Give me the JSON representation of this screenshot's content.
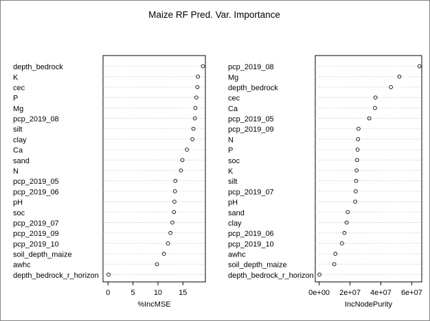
{
  "chart_data": {
    "type": "scatter",
    "title": "Maize RF Pred. Var. Importance",
    "grid": "dotted horizontal guide lines",
    "marker": "open circle",
    "panels": [
      {
        "xlabel": "%IncMSE",
        "xlim": [
          -1,
          19.5
        ],
        "ticks": [
          0,
          5,
          10,
          15
        ],
        "tick_labels": [
          "0",
          "5",
          "10",
          "15"
        ],
        "variables": [
          "depth_bedrock",
          "K",
          "cec",
          "P",
          "Mg",
          "pcp_2019_08",
          "silt",
          "clay",
          "Ca",
          "sand",
          "N",
          "pcp_2019_05",
          "pcp_2019_06",
          "pH",
          "soc",
          "pcp_2019_07",
          "pcp_2019_09",
          "pcp_2019_10",
          "soil_depth_maize",
          "awhc",
          "depth_bedrock_r_horizon"
        ],
        "values": [
          19.0,
          18.0,
          17.9,
          17.7,
          17.5,
          17.4,
          17.1,
          16.9,
          15.8,
          14.9,
          14.6,
          13.5,
          13.4,
          13.3,
          13.2,
          12.9,
          12.5,
          12.0,
          11.2,
          9.8,
          0.1
        ]
      },
      {
        "xlabel": "IncNodePurity",
        "xlim": [
          -2500000,
          66500000
        ],
        "ticks": [
          0,
          20000000,
          40000000,
          60000000
        ],
        "tick_labels": [
          "0e+00",
          "2e+07",
          "4e+07",
          "6e+07"
        ],
        "variables": [
          "pcp_2019_08",
          "Mg",
          "depth_bedrock",
          "cec",
          "Ca",
          "pcp_2019_05",
          "pcp_2019_09",
          "N",
          "P",
          "soc",
          "K",
          "silt",
          "pcp_2019_07",
          "pH",
          "sand",
          "clay",
          "pcp_2019_06",
          "pcp_2019_10",
          "awhc",
          "soil_depth_maize",
          "depth_bedrock_r_horizon"
        ],
        "values": [
          65000000,
          52000000,
          46500000,
          36500000,
          36200000,
          32500000,
          25500000,
          25200000,
          24900000,
          24600000,
          24300000,
          24000000,
          23700000,
          23400000,
          18500000,
          17800000,
          16400000,
          14800000,
          10500000,
          9800000,
          200000
        ]
      }
    ]
  }
}
